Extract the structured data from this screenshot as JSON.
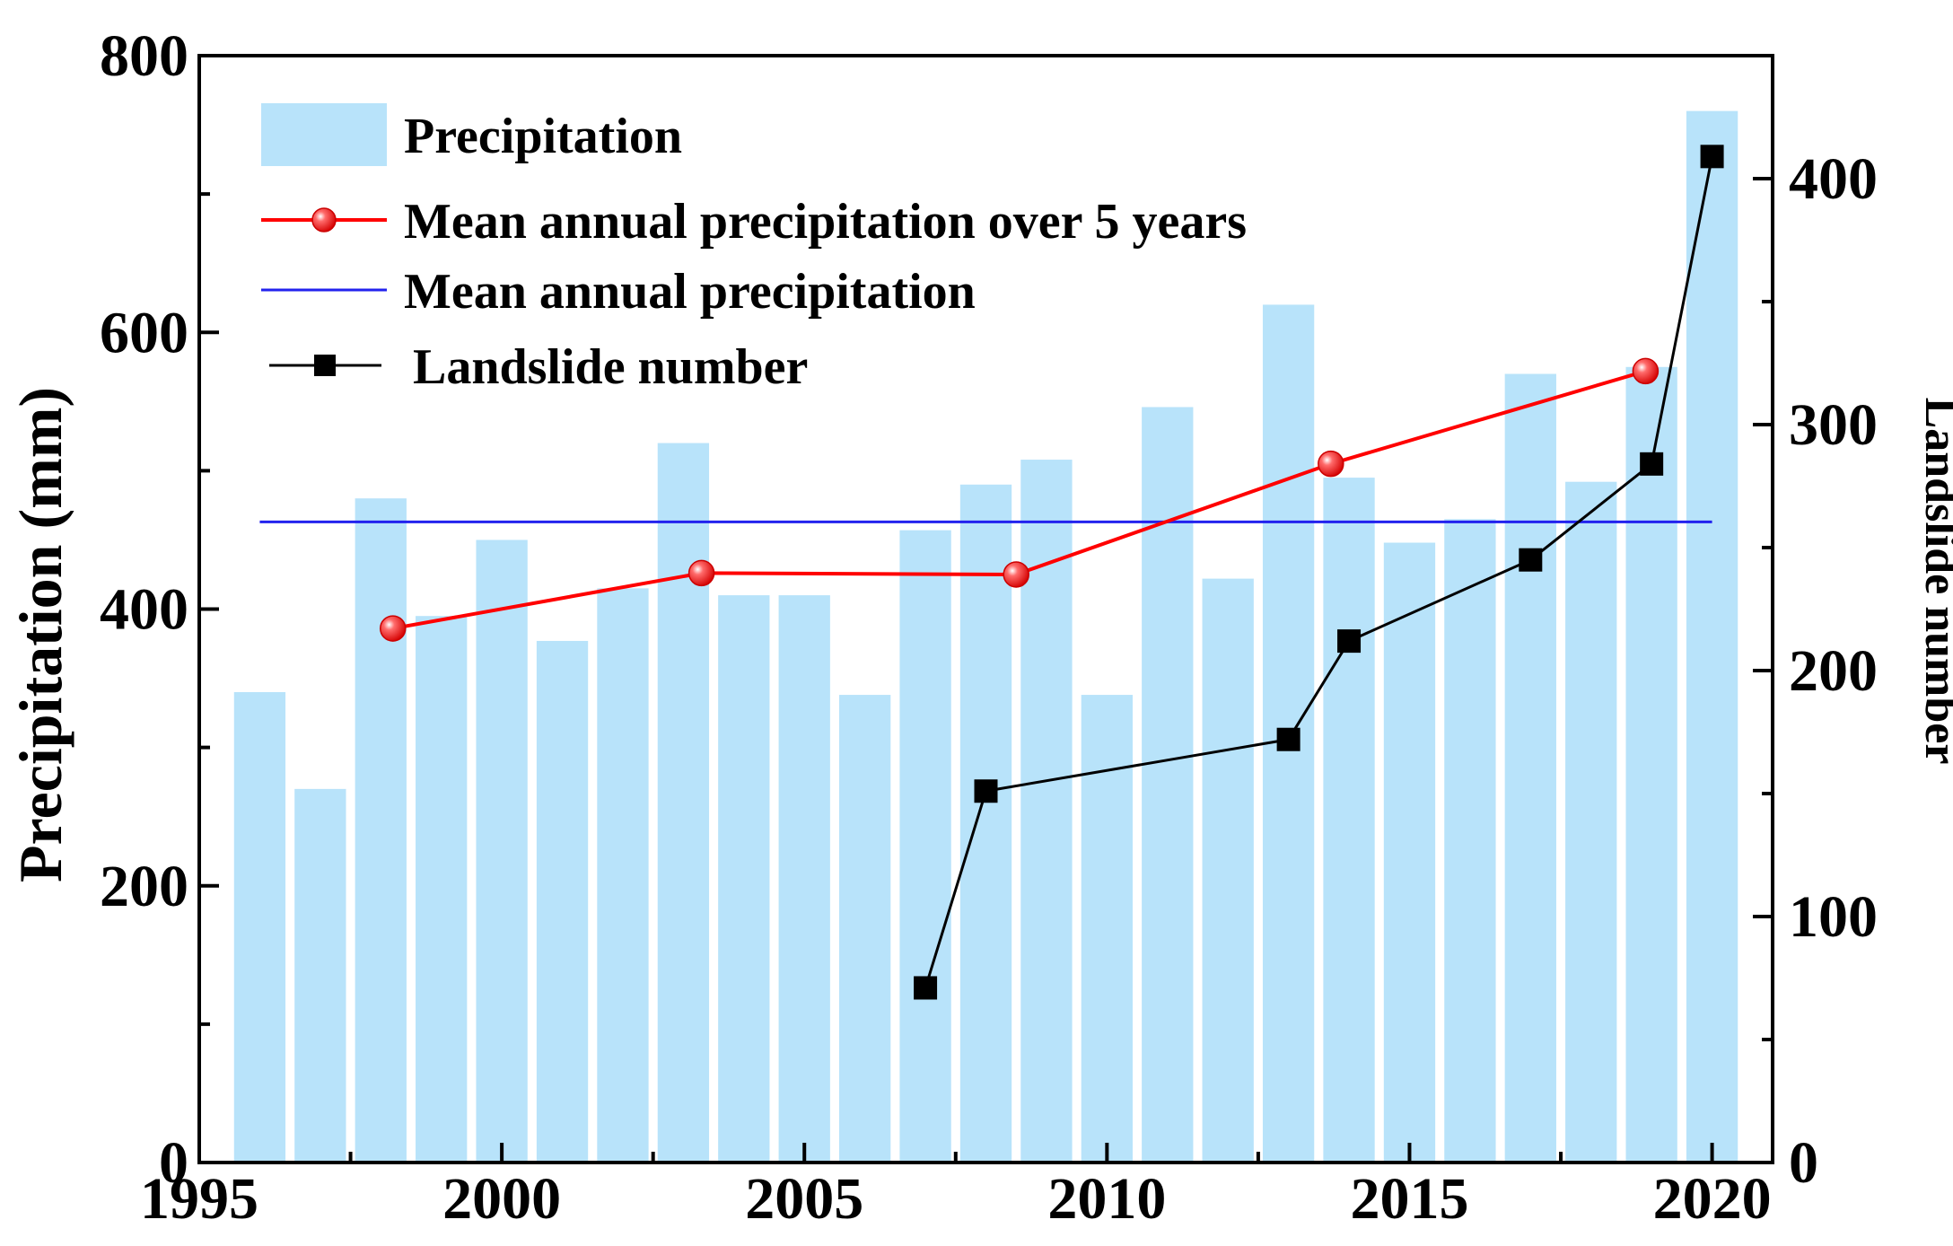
{
  "chart_data": {
    "type": "bar",
    "title": "",
    "xlabel": "",
    "ylabel": "Precipitation (mm)",
    "y2label": "Landslide number",
    "xlim": [
      1995,
      2021
    ],
    "ylim": [
      0,
      800
    ],
    "y2lim": [
      0,
      450
    ],
    "x_ticks": [
      "1995",
      "2000",
      "2005",
      "2010",
      "2015",
      "2020"
    ],
    "y_ticks": [
      "0",
      "200",
      "400",
      "600",
      "800"
    ],
    "y2_ticks": [
      "0",
      "100",
      "200",
      "300",
      "400"
    ],
    "legend_position": "top-left",
    "legend": [
      "Precipitation",
      "Mean annual precipitation over 5 years",
      "Mean annual precipitation",
      "Landslide number"
    ],
    "colors": {
      "bar": "#b8e3fa",
      "five_year": "#ff0000",
      "mean": "#2222ee",
      "landslide": "#000000"
    },
    "precipitation": {
      "years": [
        1996,
        1997,
        1998,
        1999,
        2000,
        2001,
        2002,
        2003,
        2004,
        2005,
        2006,
        2007,
        2008,
        2009,
        2010,
        2011,
        2012,
        2013,
        2014,
        2015,
        2016,
        2017,
        2018,
        2019,
        2020
      ],
      "values": [
        340,
        270,
        480,
        395,
        450,
        377,
        415,
        520,
        410,
        410,
        338,
        457,
        490,
        508,
        338,
        546,
        422,
        620,
        495,
        448,
        465,
        570,
        492,
        575,
        760
      ]
    },
    "five_year_mean": {
      "x": [
        1998.2,
        2003.3,
        2008.5,
        2013.7,
        2018.9
      ],
      "values": [
        386,
        426,
        425,
        505,
        572
      ]
    },
    "mean_annual": {
      "x": [
        1996,
        2020
      ],
      "value": 463
    },
    "landslide_number": {
      "years": [
        2007,
        2008,
        2013,
        2014,
        2017,
        2019,
        2020
      ],
      "values": [
        71,
        151,
        172,
        212,
        245,
        284,
        409
      ]
    }
  }
}
